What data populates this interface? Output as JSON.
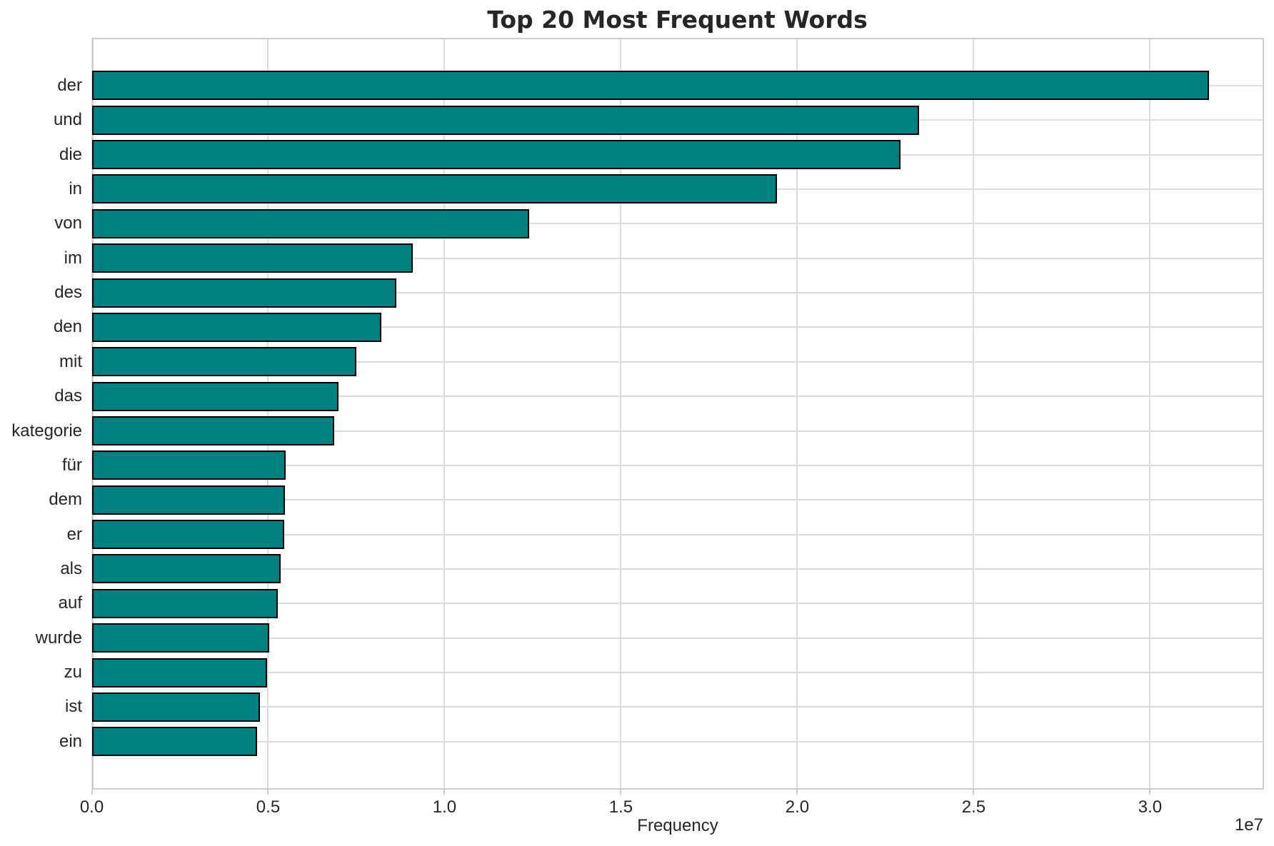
{
  "chart_data": {
    "type": "bar",
    "orientation": "horizontal",
    "title": "Top 20 Most Frequent Words",
    "xlabel": "Frequency",
    "ylabel": "",
    "x_offset_label": "1e7",
    "categories": [
      "der",
      "und",
      "die",
      "in",
      "von",
      "im",
      "des",
      "den",
      "mit",
      "das",
      "kategorie",
      "für",
      "dem",
      "er",
      "als",
      "auf",
      "wurde",
      "zu",
      "ist",
      "ein"
    ],
    "values": [
      31650000,
      23440000,
      22900000,
      19400000,
      12380000,
      9070000,
      8610000,
      8190000,
      7470000,
      6980000,
      6860000,
      5480000,
      5460000,
      5430000,
      5340000,
      5250000,
      5010000,
      4940000,
      4750000,
      4670000
    ],
    "xlim": [
      0,
      33220000
    ],
    "xticks": [
      0,
      5000000,
      10000000,
      15000000,
      20000000,
      25000000,
      30000000
    ],
    "xtick_labels": [
      "0.0",
      "0.5",
      "1.0",
      "1.5",
      "2.0",
      "2.5",
      "3.0"
    ],
    "grid": true,
    "legend_position": "none",
    "colors": {
      "bar_fill": "#008080",
      "bar_edge": "#000000",
      "grid": "#dcdcdc",
      "spine": "#cccccc",
      "text": "#262626",
      "background": "#ffffff"
    }
  }
}
